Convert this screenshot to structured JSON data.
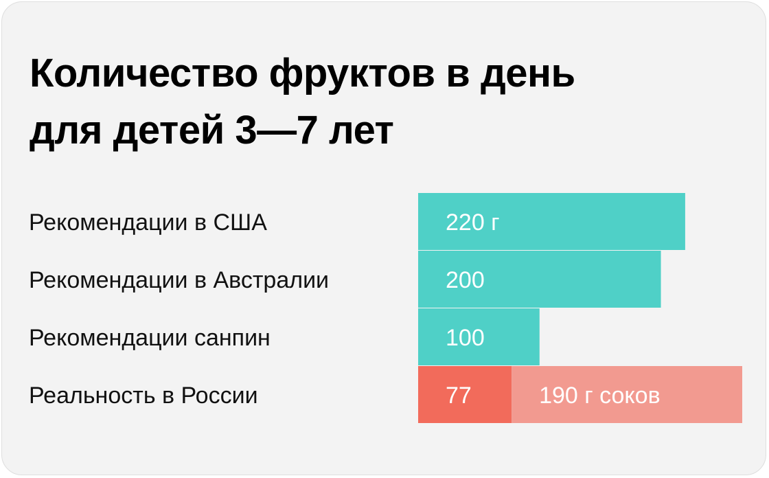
{
  "title": {
    "line1": "Количество фруктов в день",
    "line2": "для детей 3—7 лет"
  },
  "chart_data": {
    "type": "bar",
    "orientation": "horizontal",
    "stacked": true,
    "categories": [
      "Рекомендации в США",
      "Рекомендации в Австралии",
      "Рекомендации санпин",
      "Реальность в России"
    ],
    "series": [
      {
        "values": [
          220,
          200,
          100,
          77
        ],
        "labels": [
          "220 г",
          "200",
          "100",
          "77"
        ],
        "colors": [
          "#4fd0c7",
          "#4fd0c7",
          "#4fd0c7",
          "#f26b5b"
        ]
      },
      {
        "values": [
          0,
          0,
          0,
          190
        ],
        "labels": [
          "",
          "",
          "",
          "190 г соков"
        ],
        "colors": [
          "#f29a90",
          "#f29a90",
          "#f29a90",
          "#f29a90"
        ]
      }
    ],
    "xlim": [
      0,
      267
    ],
    "grid": false,
    "legend": "none"
  }
}
